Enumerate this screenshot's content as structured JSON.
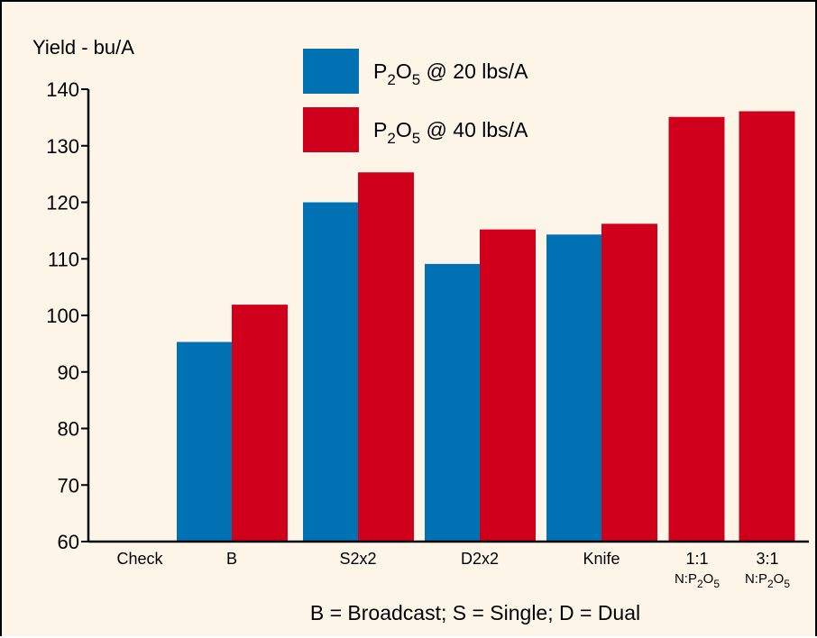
{
  "chart_data": {
    "type": "bar",
    "ylabel": "Yield - bu/A",
    "ylim": [
      60,
      140
    ],
    "yticks": [
      60,
      70,
      80,
      90,
      100,
      110,
      120,
      130,
      140
    ],
    "categories": [
      {
        "label": "Check",
        "sub": ""
      },
      {
        "label": "B",
        "sub": ""
      },
      {
        "label": "S2x2",
        "sub": ""
      },
      {
        "label": "D2x2",
        "sub": ""
      },
      {
        "label": "Knife",
        "sub": ""
      },
      {
        "label": "1:1",
        "sub": "N:P2O5"
      },
      {
        "label": "3:1",
        "sub": "N:P2O5"
      }
    ],
    "series": [
      {
        "name": "P2O5 @ 20 lbs/A",
        "color": "#0071b3",
        "values": [
          null,
          95.3,
          120.0,
          109.1,
          114.3,
          null,
          null
        ]
      },
      {
        "name": "P2O5 @ 40 lbs/A",
        "color": "#d0001d",
        "values": [
          null,
          101.9,
          125.3,
          115.2,
          116.2,
          135.1,
          136.1
        ]
      }
    ],
    "legend": {
      "position": "top-center",
      "items": [
        {
          "prefix": "P",
          "sub1": "2",
          "mid": "O",
          "sub2": "5",
          "suffix": " @ 20 lbs/A",
          "color": "#0071b3"
        },
        {
          "prefix": "P",
          "sub1": "2",
          "mid": "O",
          "sub2": "5",
          "suffix": " @ 40 lbs/A",
          "color": "#d0001d"
        }
      ]
    },
    "footnote": "B = Broadcast; S = Single; D = Dual",
    "background": "#fdf6e8"
  }
}
